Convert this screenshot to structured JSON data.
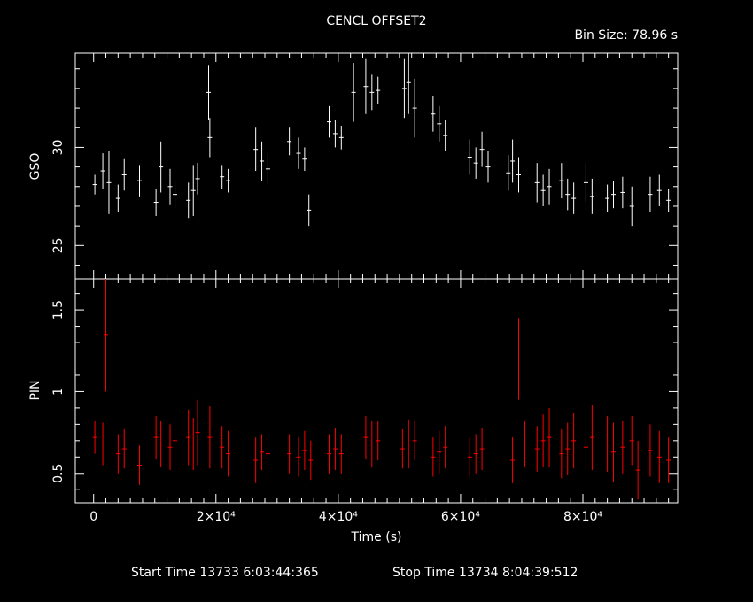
{
  "title": "CENCL OFFSET2",
  "bin_size_label": "Bin Size: 78.96 s",
  "footer": {
    "start_label": "Start Time 13733  6:03:44:365",
    "stop_label": "Stop Time 13734  8:04:39:512"
  },
  "colors": {
    "gso": "#ffffff",
    "pin": "#ff0000",
    "axes": "#ffffff",
    "background": "#000000"
  },
  "chart_data": [
    {
      "type": "scatter",
      "panel": "upper",
      "title": "CENCL OFFSET2",
      "xlabel": "",
      "ylabel": "GSO",
      "xlim": [
        -3000,
        95500
      ],
      "ylim": [
        23.3,
        34.8
      ],
      "yticks_labeled": [
        25,
        30
      ],
      "series": [
        {
          "name": "GSO",
          "color": "#ffffff",
          "x": [
            200,
            1500,
            2500,
            4000,
            5000,
            7500,
            10200,
            11000,
            12500,
            13300,
            15500,
            16300,
            17000,
            18800,
            19000,
            21000,
            22000,
            26500,
            27500,
            28500,
            32000,
            33500,
            34500,
            35200,
            38500,
            39500,
            40500,
            42500,
            44500,
            45500,
            46500,
            50800,
            51500,
            52500,
            55500,
            56500,
            57500,
            61500,
            62500,
            63500,
            64500,
            67800,
            68500,
            69500,
            72500,
            73500,
            74500,
            76500,
            77500,
            78500,
            80500,
            81500,
            84000,
            85000,
            86500,
            88000,
            91000,
            92500,
            94000
          ],
          "y": [
            28.1,
            28.8,
            28.2,
            27.4,
            28.6,
            28.3,
            27.2,
            29.0,
            28.0,
            27.6,
            27.3,
            27.8,
            28.4,
            32.8,
            30.5,
            28.5,
            28.3,
            29.9,
            29.3,
            28.9,
            30.3,
            29.7,
            29.4,
            26.8,
            31.3,
            30.7,
            30.5,
            32.8,
            33.1,
            32.8,
            32.9,
            33.0,
            33.3,
            32.0,
            31.7,
            31.2,
            30.6,
            29.5,
            29.2,
            29.9,
            29.0,
            28.7,
            29.3,
            28.6,
            28.2,
            27.8,
            28.0,
            28.3,
            27.6,
            27.4,
            28.2,
            27.5,
            27.4,
            27.6,
            27.7,
            27.0,
            27.6,
            27.8,
            27.3
          ],
          "yerr": [
            0.5,
            0.9,
            1.6,
            0.7,
            0.8,
            0.8,
            0.7,
            1.3,
            0.9,
            0.7,
            0.9,
            1.3,
            0.8,
            1.4,
            1.0,
            0.6,
            0.6,
            1.1,
            1.0,
            0.8,
            0.7,
            0.8,
            0.6,
            0.8,
            0.8,
            0.7,
            0.6,
            1.5,
            1.4,
            0.9,
            0.7,
            1.5,
            1.6,
            1.5,
            0.9,
            0.9,
            0.8,
            0.9,
            0.8,
            0.9,
            0.8,
            0.9,
            1.1,
            0.9,
            1.0,
            0.8,
            0.9,
            0.9,
            0.8,
            0.8,
            1.0,
            0.9,
            0.7,
            0.7,
            0.8,
            1.0,
            0.9,
            0.8,
            0.6
          ]
        }
      ]
    },
    {
      "type": "scatter",
      "panel": "lower",
      "title": "",
      "xlabel": "Time (s)",
      "ylabel": "PIN",
      "xlim": [
        -3000,
        95500
      ],
      "ylim": [
        0.32,
        1.69
      ],
      "yticks_labeled": [
        0.5,
        1,
        1.5
      ],
      "xticks_labeled": [
        "0",
        "2×10⁴",
        "4×10⁴",
        "6×10⁴",
        "8×10⁴"
      ],
      "series": [
        {
          "name": "PIN",
          "color": "#ff0000",
          "x": [
            200,
            1500,
            2000,
            4000,
            5000,
            7500,
            10200,
            11000,
            12500,
            13300,
            15500,
            16300,
            17000,
            19000,
            21000,
            22000,
            26500,
            27500,
            28500,
            32000,
            33500,
            34500,
            35500,
            38500,
            39500,
            40500,
            44500,
            45500,
            46500,
            50500,
            51500,
            52500,
            55500,
            56500,
            57500,
            61500,
            62500,
            63500,
            68500,
            69500,
            70500,
            72500,
            73500,
            74500,
            76500,
            77500,
            78500,
            80500,
            81500,
            84000,
            85000,
            86500,
            88000,
            89000,
            91000,
            92500,
            94000
          ],
          "y": [
            0.72,
            0.68,
            1.35,
            0.62,
            0.65,
            0.55,
            0.72,
            0.68,
            0.66,
            0.7,
            0.72,
            0.68,
            0.75,
            0.72,
            0.66,
            0.62,
            0.58,
            0.63,
            0.62,
            0.62,
            0.6,
            0.64,
            0.58,
            0.62,
            0.65,
            0.62,
            0.72,
            0.68,
            0.7,
            0.65,
            0.68,
            0.7,
            0.6,
            0.63,
            0.66,
            0.6,
            0.62,
            0.65,
            0.58,
            1.2,
            0.68,
            0.65,
            0.7,
            0.72,
            0.62,
            0.65,
            0.7,
            0.66,
            0.72,
            0.68,
            0.63,
            0.66,
            0.7,
            0.52,
            0.64,
            0.6,
            0.58
          ],
          "yerr": [
            0.1,
            0.13,
            0.35,
            0.12,
            0.12,
            0.12,
            0.13,
            0.14,
            0.14,
            0.15,
            0.17,
            0.16,
            0.2,
            0.19,
            0.13,
            0.14,
            0.14,
            0.11,
            0.12,
            0.12,
            0.12,
            0.12,
            0.12,
            0.12,
            0.13,
            0.12,
            0.13,
            0.14,
            0.12,
            0.12,
            0.15,
            0.12,
            0.12,
            0.13,
            0.13,
            0.12,
            0.12,
            0.13,
            0.14,
            0.25,
            0.14,
            0.14,
            0.16,
            0.18,
            0.15,
            0.16,
            0.17,
            0.15,
            0.2,
            0.17,
            0.18,
            0.16,
            0.15,
            0.18,
            0.16,
            0.16,
            0.14
          ]
        }
      ]
    }
  ]
}
